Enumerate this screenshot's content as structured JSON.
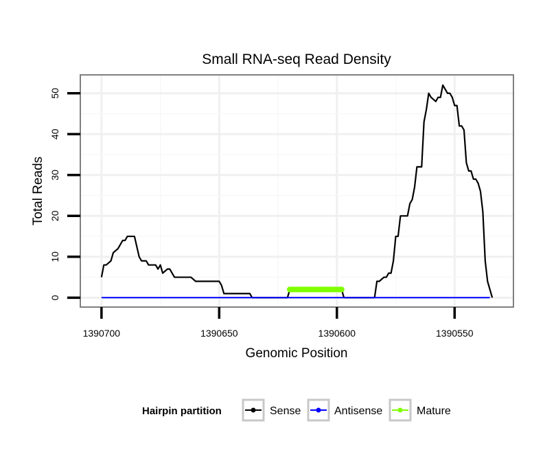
{
  "chart_data": {
    "type": "line",
    "title": "Small RNA-seq Read Density",
    "xlabel": "Genomic Position",
    "ylabel": "Total Reads",
    "xlim": [
      1390709,
      1390525
    ],
    "ylim": [
      -2.3,
      54.5
    ],
    "x_reversed": true,
    "x_ticks": [
      1390700,
      1390650,
      1390600,
      1390550
    ],
    "x_tick_labels": [
      "1390700",
      "1390650",
      "1390600",
      "1390550"
    ],
    "y_ticks": [
      0,
      10,
      20,
      30,
      40,
      50
    ],
    "y_tick_labels": [
      "0",
      "10",
      "20",
      "30",
      "40",
      "50"
    ],
    "grid": true,
    "legend_position": "bottom",
    "legend_title": "Hairpin partition",
    "series": [
      {
        "name": "Sense",
        "color": "#000000",
        "x": [
          1390700,
          1390699,
          1390698,
          1390696,
          1390695,
          1390693,
          1390691,
          1390690,
          1390689,
          1390687,
          1390686,
          1390684,
          1390683,
          1390681,
          1390680,
          1390677,
          1390676,
          1390675,
          1390674,
          1390672,
          1390671,
          1390669,
          1390668,
          1390667,
          1390666,
          1390665,
          1390664,
          1390662,
          1390660,
          1390657,
          1390656,
          1390650,
          1390649,
          1390648,
          1390647,
          1390646,
          1390645,
          1390640,
          1390637,
          1390636,
          1390621,
          1390620,
          1390598,
          1390597,
          1390584,
          1390583,
          1390582,
          1390580,
          1390579,
          1390578,
          1390577,
          1390576,
          1390575,
          1390574,
          1390573,
          1390572,
          1390570,
          1390569,
          1390568,
          1390567,
          1390566,
          1390564,
          1390563,
          1390562,
          1390561,
          1390560,
          1390558,
          1390557,
          1390556,
          1390555,
          1390554,
          1390553,
          1390552,
          1390551,
          1390550,
          1390549,
          1390548,
          1390547,
          1390546,
          1390545,
          1390544,
          1390543,
          1390542,
          1390541,
          1390540,
          1390539,
          1390538,
          1390537,
          1390536,
          1390534
        ],
        "values": [
          5,
          8,
          8,
          9,
          11,
          12,
          14,
          14,
          15,
          15,
          15,
          10,
          9,
          9,
          8,
          8,
          7,
          8,
          6,
          7,
          7,
          5,
          5,
          5,
          5,
          5,
          5,
          5,
          4,
          4,
          4,
          4,
          3,
          1,
          1,
          1,
          1,
          1,
          1,
          0,
          0,
          2,
          2,
          0,
          0,
          4,
          4,
          5,
          5,
          6,
          6,
          9,
          15,
          15,
          20,
          20,
          20,
          23,
          24,
          27,
          32,
          32,
          43,
          46,
          50,
          49,
          48,
          49,
          49,
          52,
          51,
          50,
          50,
          49,
          47,
          47,
          42,
          42,
          41,
          33,
          31,
          31,
          29,
          29,
          28,
          26,
          21,
          9,
          4,
          0
        ]
      },
      {
        "name": "Antisense",
        "color": "#0000ff",
        "x": [
          1390700,
          1390535
        ],
        "values": [
          0,
          0
        ]
      },
      {
        "name": "Mature",
        "color": "#7fff00",
        "x": [
          1390620,
          1390598
        ],
        "values": [
          2,
          2
        ]
      }
    ]
  }
}
